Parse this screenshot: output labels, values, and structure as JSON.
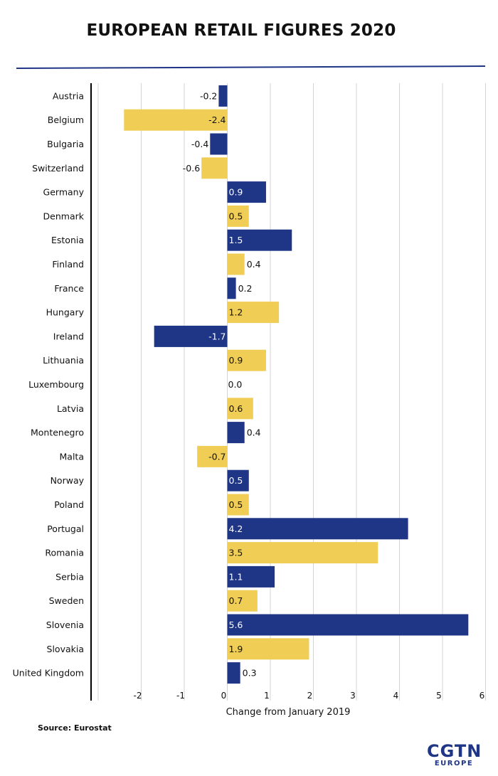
{
  "chart_data": {
    "type": "bar",
    "orientation": "horizontal",
    "title": "EUROPEAN RETAIL FIGURES 2020",
    "xlabel": "Change from January 2019",
    "ylabel": "",
    "xlim": [
      -3,
      6
    ],
    "xticks": [
      -2,
      -1,
      0,
      1,
      2,
      3,
      4,
      5,
      6
    ],
    "grid": true,
    "categories": [
      "Austria",
      "Belgium",
      "Bulgaria",
      "Switzerland",
      "Germany",
      "Denmark",
      "Estonia",
      "Finland",
      "France",
      "Hungary",
      "Ireland",
      "Lithuania",
      "Luxembourg",
      "Latvia",
      "Montenegro",
      "Malta",
      "Norway",
      "Poland",
      "Portugal",
      "Romania",
      "Serbia",
      "Sweden",
      "Slovenia",
      "Slovakia",
      "United Kingdom"
    ],
    "values": [
      -0.2,
      -2.4,
      -0.4,
      -0.6,
      0.9,
      0.5,
      1.5,
      0.4,
      0.2,
      1.2,
      -1.7,
      0.9,
      0.0,
      0.6,
      0.4,
      -0.7,
      0.5,
      0.5,
      4.2,
      3.5,
      1.1,
      0.7,
      5.6,
      1.9,
      0.3
    ],
    "value_labels": [
      "-0.2",
      "-2.4",
      "-0.4",
      "-0.6",
      "0.9",
      "0.5",
      "1.5",
      "0.4",
      "0.2",
      "1.2",
      "-1.7",
      "0.9",
      "0.0",
      "0.6",
      "0.4",
      "-0.7",
      "0.5",
      "0.5",
      "4.2",
      "3.5",
      "1.1",
      "0.7",
      "5.6",
      "1.9",
      "0.3"
    ],
    "colors": [
      "#1f3585",
      "#f0cd55"
    ]
  },
  "source": "Source: Eurostat",
  "logo": {
    "main": "CGTN",
    "sub": "EUROPE"
  }
}
